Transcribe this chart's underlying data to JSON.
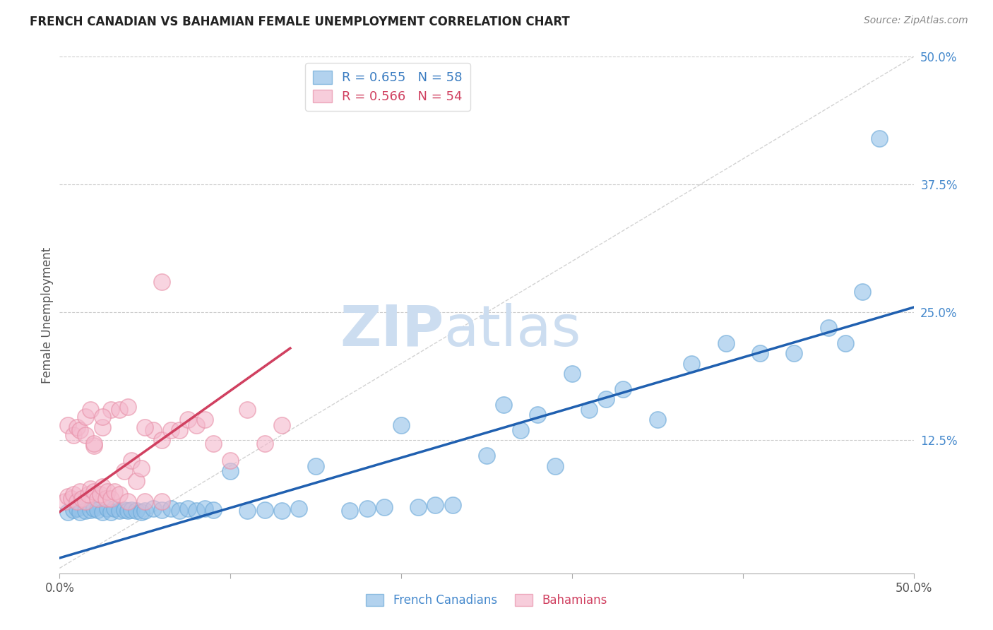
{
  "title": "FRENCH CANADIAN VS BAHAMIAN FEMALE UNEMPLOYMENT CORRELATION CHART",
  "source": "Source: ZipAtlas.com",
  "ylabel": "Female Unemployment",
  "xlim": [
    0,
    0.5
  ],
  "ylim": [
    -0.005,
    0.5
  ],
  "ytick_labels_right": [
    "50.0%",
    "37.5%",
    "25.0%",
    "12.5%"
  ],
  "ytick_positions_right": [
    0.5,
    0.375,
    0.25,
    0.125
  ],
  "grid_color": "#cccccc",
  "background_color": "#ffffff",
  "watermark_text_zip": "ZIP",
  "watermark_text_atlas": "atlas",
  "watermark_color": "#ccddf0",
  "blue_color": "#92c0e8",
  "blue_edge_color": "#6aa8d8",
  "pink_color": "#f4b8cc",
  "pink_edge_color": "#e890a8",
  "legend_blue_label": "R = 0.655   N = 58",
  "legend_pink_label": "R = 0.566   N = 54",
  "legend_fc_label": "French Canadians",
  "legend_bah_label": "Bahamians",
  "blue_line_color": "#2060b0",
  "pink_line_color": "#d04060",
  "diag_line_color": "#c0c0c0",
  "blue_line_x": [
    0.0,
    0.5
  ],
  "blue_line_y": [
    0.01,
    0.255
  ],
  "pink_line_x": [
    0.0,
    0.135
  ],
  "pink_line_y": [
    0.055,
    0.215
  ],
  "blue_x": [
    0.005,
    0.008,
    0.01,
    0.012,
    0.015,
    0.018,
    0.02,
    0.022,
    0.025,
    0.028,
    0.03,
    0.032,
    0.035,
    0.038,
    0.04,
    0.042,
    0.045,
    0.048,
    0.05,
    0.055,
    0.06,
    0.065,
    0.07,
    0.075,
    0.08,
    0.085,
    0.09,
    0.1,
    0.11,
    0.12,
    0.13,
    0.14,
    0.15,
    0.17,
    0.18,
    0.19,
    0.2,
    0.21,
    0.22,
    0.23,
    0.25,
    0.26,
    0.27,
    0.28,
    0.29,
    0.3,
    0.31,
    0.32,
    0.33,
    0.35,
    0.37,
    0.39,
    0.41,
    0.43,
    0.45,
    0.46,
    0.47,
    0.48
  ],
  "blue_y": [
    0.055,
    0.057,
    0.058,
    0.055,
    0.056,
    0.057,
    0.058,
    0.057,
    0.055,
    0.058,
    0.055,
    0.058,
    0.056,
    0.057,
    0.056,
    0.057,
    0.056,
    0.055,
    0.056,
    0.058,
    0.057,
    0.058,
    0.056,
    0.058,
    0.056,
    0.058,
    0.057,
    0.095,
    0.056,
    0.057,
    0.056,
    0.058,
    0.1,
    0.056,
    0.058,
    0.06,
    0.14,
    0.06,
    0.062,
    0.062,
    0.11,
    0.16,
    0.135,
    0.15,
    0.1,
    0.19,
    0.155,
    0.165,
    0.175,
    0.145,
    0.2,
    0.22,
    0.21,
    0.21,
    0.235,
    0.22,
    0.27,
    0.42
  ],
  "pink_x": [
    0.003,
    0.005,
    0.007,
    0.008,
    0.01,
    0.012,
    0.013,
    0.015,
    0.017,
    0.018,
    0.02,
    0.022,
    0.024,
    0.025,
    0.027,
    0.028,
    0.03,
    0.032,
    0.035,
    0.038,
    0.04,
    0.042,
    0.045,
    0.048,
    0.05,
    0.055,
    0.06,
    0.065,
    0.07,
    0.075,
    0.08,
    0.085,
    0.09,
    0.1,
    0.11,
    0.12,
    0.13,
    0.005,
    0.008,
    0.01,
    0.012,
    0.015,
    0.018,
    0.02,
    0.025,
    0.03,
    0.035,
    0.04,
    0.05,
    0.06,
    0.015,
    0.02,
    0.025,
    0.06
  ],
  "pink_y": [
    0.065,
    0.07,
    0.068,
    0.072,
    0.065,
    0.075,
    0.068,
    0.065,
    0.072,
    0.078,
    0.075,
    0.068,
    0.072,
    0.08,
    0.068,
    0.075,
    0.068,
    0.075,
    0.072,
    0.095,
    0.065,
    0.105,
    0.085,
    0.098,
    0.065,
    0.135,
    0.125,
    0.135,
    0.135,
    0.145,
    0.14,
    0.145,
    0.122,
    0.105,
    0.155,
    0.122,
    0.14,
    0.14,
    0.13,
    0.138,
    0.135,
    0.148,
    0.155,
    0.12,
    0.138,
    0.155,
    0.155,
    0.158,
    0.138,
    0.28,
    0.13,
    0.122,
    0.148,
    0.065
  ]
}
